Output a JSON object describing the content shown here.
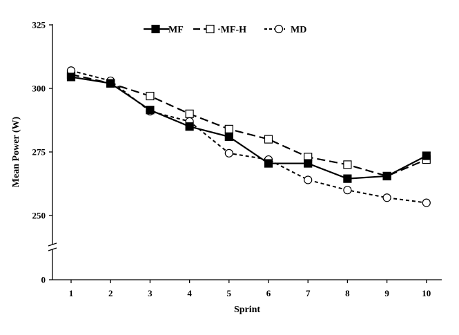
{
  "chart_data": {
    "type": "line",
    "title": "",
    "xlabel": "Sprint",
    "ylabel": "Mean Power (W)",
    "x": [
      1,
      2,
      3,
      4,
      5,
      6,
      7,
      8,
      9,
      10
    ],
    "y_ticks": [
      0,
      250,
      275,
      300,
      325
    ],
    "ylim": [
      240,
      325
    ],
    "axis_break": true,
    "grid": false,
    "legend_position": "top-center",
    "series": [
      {
        "name": "MF",
        "marker": "filled-square",
        "line": "solid",
        "values": [
          304.5,
          302,
          291.5,
          285,
          281,
          270.5,
          270.5,
          264.5,
          265.5,
          273.5
        ]
      },
      {
        "name": "MF-H",
        "marker": "open-square",
        "line": "long-dash",
        "values": [
          305.5,
          302,
          297,
          290,
          284,
          280,
          273,
          270,
          265.5,
          272
        ]
      },
      {
        "name": "MD",
        "marker": "open-circle",
        "line": "short-dash",
        "values": [
          307,
          303,
          291,
          287,
          274.5,
          272,
          264,
          260,
          257,
          255
        ]
      }
    ]
  },
  "legend": {
    "mf_label": "MF",
    "mfh_label": "·MF-H",
    "md_label": "MD"
  },
  "colors": {
    "axis": "#000000",
    "line": "#000000",
    "marker_fill_open": "#ffffff",
    "marker_fill_solid": "#000000"
  }
}
